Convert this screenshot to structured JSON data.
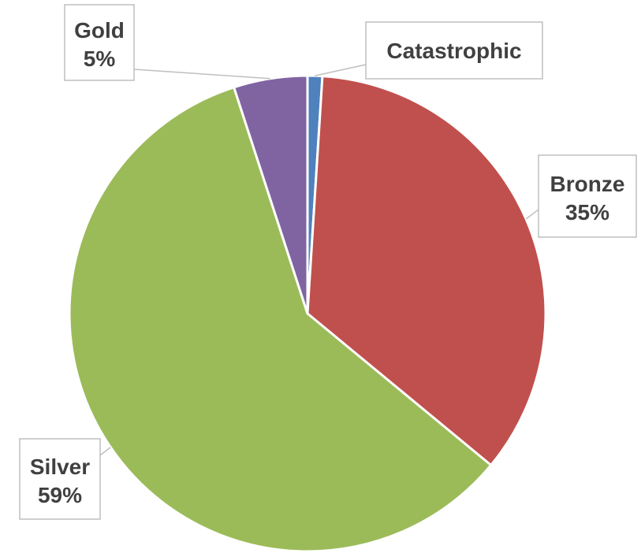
{
  "chart_data": {
    "type": "pie",
    "title": "",
    "slices": [
      {
        "name": "Catastrophic",
        "value": 1,
        "label_percent": "",
        "color": "#4F81BD"
      },
      {
        "name": "Bronze",
        "value": 35,
        "label_percent": "35%",
        "color": "#C0504D"
      },
      {
        "name": "Silver",
        "value": 59,
        "label_percent": "59%",
        "color": "#9BBB59"
      },
      {
        "name": "Gold",
        "value": 5,
        "label_percent": "5%",
        "color": "#8064A2"
      }
    ],
    "start_angle_deg": 0,
    "direction": "clockwise",
    "slice_border_color": "#FFFFFF",
    "label_box_border_color": "#BFBFBF",
    "label_text_color": "#404040",
    "legend": "none"
  }
}
